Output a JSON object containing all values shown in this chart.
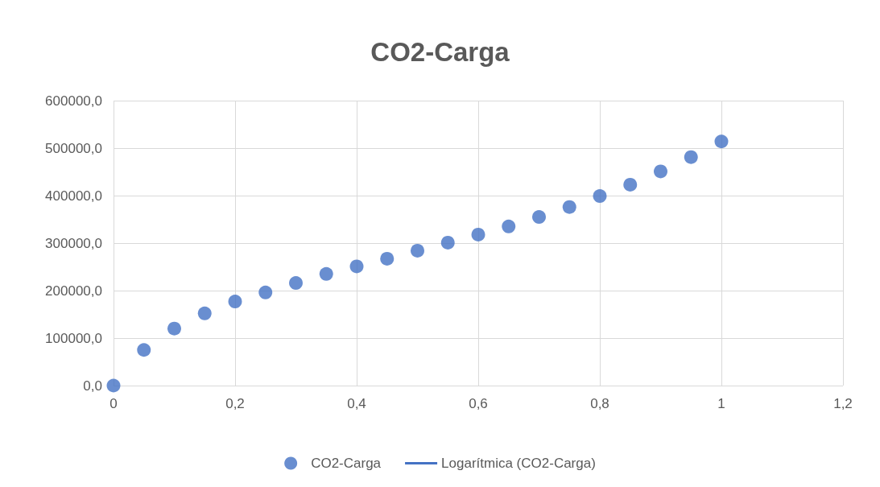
{
  "chart_data": {
    "type": "scatter",
    "title": "CO2-Carga",
    "x": [
      0,
      0.05,
      0.1,
      0.15,
      0.2,
      0.25,
      0.3,
      0.35,
      0.4,
      0.45,
      0.5,
      0.55,
      0.6,
      0.65,
      0.7,
      0.75,
      0.8,
      0.85,
      0.9,
      0.95,
      1
    ],
    "series": [
      {
        "name": "CO2-Carga",
        "color": "#4472c4",
        "values": [
          0,
          75000,
          120000,
          152000,
          177000,
          196000,
          216000,
          235000,
          251000,
          267000,
          284000,
          301000,
          318000,
          335000,
          355000,
          376000,
          399000,
          423000,
          451000,
          481000,
          514000
        ]
      },
      {
        "name": "Logarítmica (CO2-Carga)",
        "type": "line",
        "color": "#4472c4",
        "values": [
          null,
          null,
          null,
          null,
          null,
          null,
          null,
          null,
          null,
          null,
          null,
          null,
          null,
          null,
          null,
          null,
          null,
          null,
          null,
          null,
          null
        ]
      }
    ],
    "xlim": [
      0,
      1.2
    ],
    "xticks": [
      0,
      {
        "value": 0.2,
        "label": "0,2"
      },
      {
        "value": 0.4,
        "label": "0,4"
      },
      {
        "value": 0.6,
        "label": "0,6"
      },
      {
        "value": 0.8,
        "label": "0,8"
      },
      1,
      {
        "value": 1.2,
        "label": "1,2"
      }
    ],
    "ylim": [
      0,
      600000
    ],
    "yticks": [
      {
        "value": 0,
        "label": "0,0"
      },
      {
        "value": 100000,
        "label": "100000,0"
      },
      {
        "value": 200000,
        "label": "200000,0"
      },
      {
        "value": 300000,
        "label": "300000,0"
      },
      {
        "value": 400000,
        "label": "400000,0"
      },
      {
        "value": 500000,
        "label": "500000,0"
      },
      {
        "value": 600000,
        "label": "600000,0"
      }
    ],
    "grid": true,
    "legend": "bottom",
    "marker": "circle"
  }
}
